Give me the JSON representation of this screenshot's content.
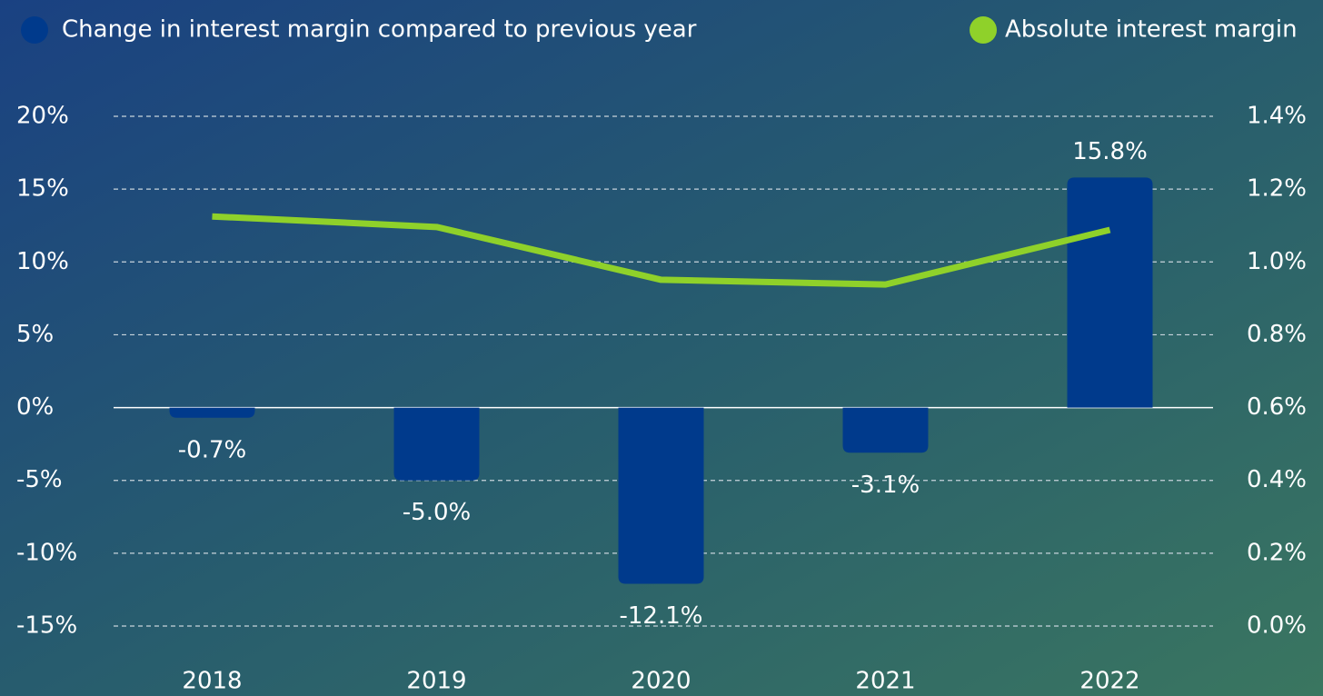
{
  "chart_data": {
    "type": "bar",
    "categories": [
      "2018",
      "2019",
      "2020",
      "2021",
      "2022"
    ],
    "series": [
      {
        "name": "Change in interest margin compared to previous year",
        "type": "bar",
        "color": "#003a8c",
        "values": [
          -0.7,
          -5.0,
          -12.1,
          -3.1,
          15.8
        ],
        "value_labels": [
          "-0.7%",
          "-5.0%",
          "-12.1%",
          "-3.1%",
          "15.8%"
        ]
      },
      {
        "name": "Absolute interest margin",
        "type": "line",
        "axis": "y2",
        "color": "#8fd12a",
        "values": [
          1.125,
          1.096,
          0.951,
          0.938,
          1.088
        ]
      }
    ],
    "ylim": [
      -15,
      20
    ],
    "yticks": [
      {
        "value": 20,
        "label": "20%"
      },
      {
        "value": 15,
        "label": "15%"
      },
      {
        "value": 10,
        "label": "10%"
      },
      {
        "value": 5,
        "label": "5%"
      },
      {
        "value": 0,
        "label": "0%"
      },
      {
        "value": -5,
        "label": "-5%"
      },
      {
        "value": -10,
        "label": "-10%"
      },
      {
        "value": -15,
        "label": "-15%"
      }
    ],
    "y2lim": [
      0,
      1.4
    ],
    "y2ticks": [
      {
        "value": 1.4,
        "label": "1.4%"
      },
      {
        "value": 1.2,
        "label": "1.2%"
      },
      {
        "value": 1.0,
        "label": "1.0%"
      },
      {
        "value": 0.8,
        "label": "0.8%"
      },
      {
        "value": 0.6,
        "label": "0.6%"
      },
      {
        "value": 0.4,
        "label": "0.4%"
      },
      {
        "value": 0.2,
        "label": "0.2%"
      },
      {
        "value": 0.0,
        "label": "0.0%"
      }
    ],
    "grid": true
  }
}
